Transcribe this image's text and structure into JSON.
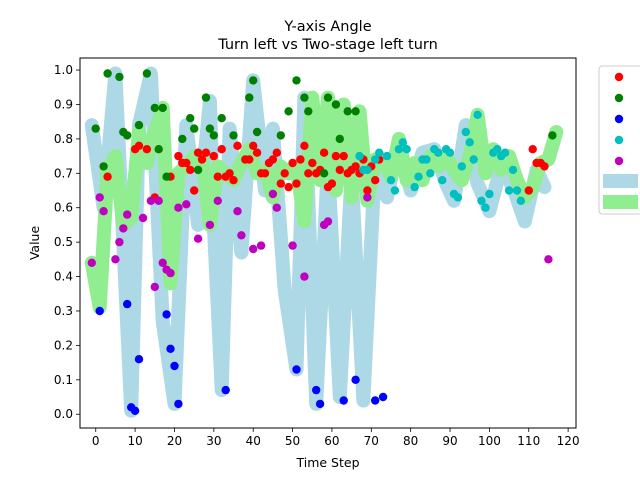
{
  "chart_data": {
    "type": "scatter",
    "title": "Y-axis Angle",
    "subtitle": "Turn left vs Two-stage left turn",
    "xlabel": "Time Step",
    "ylabel": "Value",
    "xlim": [
      -4,
      122
    ],
    "ylim": [
      -0.04,
      1.035
    ],
    "xticks": [
      "0",
      "10",
      "20",
      "30",
      "40",
      "50",
      "60",
      "70",
      "80",
      "90",
      "100",
      "110",
      "120"
    ],
    "yticks": [
      "0.0",
      "0.1",
      "0.2",
      "0.3",
      "0.4",
      "0.5",
      "0.6",
      "0.7",
      "0.8",
      "0.9",
      "1.0"
    ],
    "legend": {
      "placement": "right, partially outside plot",
      "entries": [
        "",
        "",
        "",
        "",
        "",
        "",
        ""
      ]
    },
    "colors": {
      "red": "#ff0000",
      "green": "#008000",
      "blue": "#0000ff",
      "cyan": "#00bfbf",
      "magenta": "#bf00bf",
      "band_a": "#add8e6",
      "band_b": "#90ee90"
    },
    "series": [
      {
        "color": "#ff0000",
        "x": [
          3,
          10,
          11,
          13,
          15,
          19,
          21,
          22,
          23,
          24,
          25,
          26,
          27,
          28,
          30,
          31,
          32,
          33,
          34,
          35,
          36,
          38,
          39,
          40,
          41,
          42,
          43,
          44,
          45,
          46,
          47,
          48,
          49,
          50,
          51,
          52,
          53,
          54,
          55,
          56,
          57,
          58,
          59,
          60,
          61,
          62,
          63,
          64,
          65,
          66,
          67,
          68,
          69,
          70,
          71,
          72,
          110,
          111,
          112,
          113,
          114
        ],
        "y": [
          0.69,
          0.77,
          0.78,
          0.77,
          0.63,
          0.69,
          0.75,
          0.73,
          0.73,
          0.71,
          0.65,
          0.76,
          0.74,
          0.76,
          0.75,
          0.69,
          0.77,
          0.69,
          0.7,
          0.68,
          0.78,
          0.74,
          0.74,
          0.78,
          0.76,
          0.7,
          0.7,
          0.73,
          0.74,
          0.76,
          0.67,
          0.7,
          0.66,
          0.73,
          0.67,
          0.74,
          0.78,
          0.7,
          0.73,
          0.7,
          0.71,
          0.76,
          0.66,
          0.67,
          0.75,
          0.71,
          0.75,
          0.7,
          0.71,
          0.72,
          0.7,
          0.74,
          0.65,
          0.72,
          0.68,
          0.74,
          0.65,
          0.77,
          0.73,
          0.73,
          0.72
        ]
      },
      {
        "color": "#008000",
        "x": [
          0,
          2,
          3,
          6,
          7,
          8,
          11,
          13,
          15,
          16,
          17,
          18,
          22,
          24,
          25,
          26,
          28,
          29,
          30,
          32,
          35,
          39,
          40,
          41,
          47,
          49,
          51,
          53,
          54,
          58,
          59,
          61,
          62,
          64,
          66,
          116
        ],
        "y": [
          0.83,
          0.72,
          0.99,
          0.98,
          0.82,
          0.81,
          0.84,
          0.99,
          0.89,
          0.77,
          0.89,
          0.69,
          0.8,
          0.86,
          0.83,
          0.71,
          0.92,
          0.83,
          0.81,
          0.86,
          0.81,
          0.92,
          0.97,
          0.82,
          0.81,
          0.88,
          0.97,
          0.92,
          0.88,
          0.7,
          0.92,
          0.9,
          0.8,
          0.88,
          0.88,
          0.81
        ]
      },
      {
        "color": "#0000ff",
        "x": [
          1,
          8,
          9,
          10,
          11,
          18,
          19,
          20,
          21,
          33,
          51,
          56,
          57,
          63,
          66,
          71,
          73
        ],
        "y": [
          0.3,
          0.32,
          0.02,
          0.01,
          0.16,
          0.29,
          0.19,
          0.14,
          0.03,
          0.07,
          0.13,
          0.07,
          0.03,
          0.04,
          0.1,
          0.04,
          0.05
        ]
      },
      {
        "color": "#00bfbf",
        "x": [
          67,
          68,
          69,
          71,
          72,
          74,
          75,
          76,
          77,
          78,
          79,
          81,
          82,
          83,
          84,
          85,
          86,
          87,
          88,
          89,
          90,
          91,
          92,
          93,
          94,
          95,
          96,
          97,
          98,
          99,
          100,
          101,
          102,
          103,
          104,
          105,
          106,
          107,
          108
        ],
        "y": [
          0.75,
          0.71,
          0.71,
          0.74,
          0.76,
          0.75,
          0.68,
          0.65,
          0.77,
          0.79,
          0.77,
          0.66,
          0.69,
          0.74,
          0.74,
          0.7,
          0.77,
          0.76,
          0.68,
          0.77,
          0.76,
          0.64,
          0.63,
          0.72,
          0.82,
          0.79,
          0.74,
          0.87,
          0.62,
          0.6,
          0.64,
          0.76,
          0.77,
          0.75,
          0.76,
          0.65,
          0.71,
          0.65,
          0.62
        ]
      },
      {
        "color": "#bf00bf",
        "x": [
          -1,
          1,
          2,
          5,
          6,
          7,
          8,
          12,
          14,
          15,
          16,
          17,
          18,
          19,
          21,
          23,
          26,
          29,
          31,
          36,
          37,
          40,
          42,
          45,
          46,
          50,
          53,
          58,
          59,
          69,
          115
        ],
        "y": [
          0.44,
          0.63,
          0.59,
          0.45,
          0.5,
          0.54,
          0.58,
          0.57,
          0.62,
          0.37,
          0.62,
          0.44,
          0.42,
          0.41,
          0.6,
          0.61,
          0.51,
          0.55,
          0.62,
          0.59,
          0.52,
          0.48,
          0.49,
          0.64,
          0.6,
          0.49,
          0.4,
          0.55,
          0.56,
          0.63,
          0.45
        ]
      },
      {
        "color": "#add8e6",
        "x": [
          -1,
          2,
          5,
          9,
          11,
          14,
          17,
          20,
          23,
          26,
          29,
          30,
          32,
          34,
          37,
          40,
          43,
          45,
          48,
          51,
          53,
          56,
          59,
          62,
          65,
          68,
          71,
          74,
          77,
          80,
          83,
          86,
          89,
          91,
          94,
          97,
          100,
          103,
          106,
          109,
          112,
          114
        ],
        "y": [
          0.84,
          0.6,
          0.99,
          0.01,
          0.84,
          0.99,
          0.27,
          0.03,
          0.84,
          0.55,
          0.91,
          0.55,
          0.07,
          0.83,
          0.47,
          0.97,
          0.65,
          0.83,
          0.36,
          0.13,
          0.92,
          0.03,
          0.73,
          0.05,
          0.7,
          0.04,
          0.74,
          0.63,
          0.79,
          0.65,
          0.76,
          0.77,
          0.67,
          0.62,
          0.84,
          0.67,
          0.59,
          0.72,
          0.66,
          0.56,
          0.71,
          0.66
        ]
      },
      {
        "color": "#90ee90",
        "x": [
          -1,
          1,
          3,
          5,
          7,
          9,
          11,
          13,
          15,
          17,
          19,
          21,
          23,
          25,
          27,
          29,
          31,
          33,
          35,
          37,
          39,
          41,
          43,
          45,
          47,
          49,
          51,
          53,
          55,
          57,
          59,
          61,
          63,
          65,
          67,
          69,
          71,
          73,
          75,
          77,
          79,
          81,
          83,
          85,
          87,
          89,
          91,
          93,
          95,
          97,
          99,
          101,
          103,
          105,
          107,
          109,
          111,
          113,
          115,
          117
        ],
        "y": [
          0.44,
          0.31,
          0.71,
          0.75,
          0.55,
          0.57,
          0.82,
          0.73,
          0.82,
          0.89,
          0.38,
          0.7,
          0.72,
          0.75,
          0.75,
          0.55,
          0.72,
          0.7,
          0.68,
          0.73,
          0.77,
          0.7,
          0.71,
          0.63,
          0.72,
          0.7,
          0.72,
          0.56,
          0.92,
          0.68,
          0.92,
          0.65,
          0.9,
          0.63,
          0.88,
          0.62,
          0.74,
          0.74,
          0.69,
          0.8,
          0.68,
          0.73,
          0.68,
          0.75,
          0.72,
          0.75,
          0.71,
          0.68,
          0.75,
          0.87,
          0.7,
          0.77,
          0.71,
          0.75,
          0.68,
          0.63,
          0.66,
          0.73,
          0.74,
          0.82
        ]
      }
    ]
  }
}
